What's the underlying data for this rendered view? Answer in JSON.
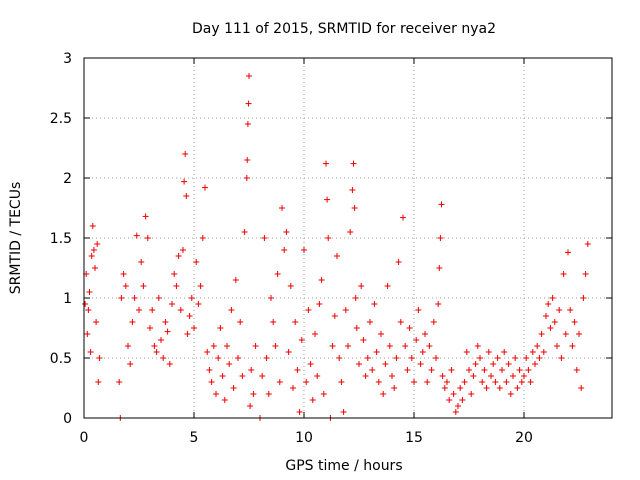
{
  "chart_data": {
    "type": "scatter",
    "title": "Day 111 of 2015, SRMTID for receiver nya2",
    "xlabel": "GPS time / hours",
    "ylabel": "SRMTID / TECUs",
    "xlim": [
      0,
      24
    ],
    "ylim": [
      0,
      3
    ],
    "xticks": [
      0,
      5,
      10,
      15,
      20
    ],
    "yticks": [
      0,
      0.5,
      1,
      1.5,
      2,
      2.5,
      3
    ],
    "xtick_labels": [
      "0",
      "5",
      "10",
      "15",
      "20"
    ],
    "ytick_labels": [
      "0",
      "0.5",
      "1",
      "1.5",
      "2",
      "2.5",
      "3"
    ],
    "grid": true,
    "marker": "plus",
    "color": "#ee0000",
    "series": [
      {
        "name": "SRMTID",
        "points": [
          [
            0.05,
            0.95
          ],
          [
            0.1,
            1.2
          ],
          [
            0.15,
            0.7
          ],
          [
            0.2,
            0.9
          ],
          [
            0.25,
            1.05
          ],
          [
            0.3,
            0.55
          ],
          [
            0.35,
            1.35
          ],
          [
            0.4,
            1.6
          ],
          [
            0.45,
            1.4
          ],
          [
            0.5,
            1.25
          ],
          [
            0.55,
            0.8
          ],
          [
            0.6,
            1.45
          ],
          [
            0.65,
            0.3
          ],
          [
            0.7,
            0.5
          ],
          [
            1.6,
            0.3
          ],
          [
            1.65,
            0.0
          ],
          [
            1.7,
            1.0
          ],
          [
            1.8,
            1.2
          ],
          [
            1.9,
            1.1
          ],
          [
            2.0,
            0.6
          ],
          [
            2.1,
            0.45
          ],
          [
            2.2,
            0.8
          ],
          [
            2.3,
            1.0
          ],
          [
            2.4,
            1.52
          ],
          [
            2.5,
            0.9
          ],
          [
            2.6,
            1.3
          ],
          [
            2.7,
            1.1
          ],
          [
            2.8,
            1.68
          ],
          [
            2.9,
            1.5
          ],
          [
            3.0,
            0.75
          ],
          [
            3.1,
            0.9
          ],
          [
            3.2,
            0.6
          ],
          [
            3.3,
            0.55
          ],
          [
            3.4,
            1.0
          ],
          [
            3.5,
            0.65
          ],
          [
            3.6,
            0.5
          ],
          [
            3.7,
            0.8
          ],
          [
            3.8,
            0.72
          ],
          [
            3.9,
            0.45
          ],
          [
            4.0,
            0.95
          ],
          [
            4.1,
            1.2
          ],
          [
            4.2,
            1.1
          ],
          [
            4.3,
            1.35
          ],
          [
            4.4,
            0.9
          ],
          [
            4.5,
            1.4
          ],
          [
            4.55,
            1.97
          ],
          [
            4.6,
            2.2
          ],
          [
            4.65,
            1.85
          ],
          [
            4.7,
            0.7
          ],
          [
            4.8,
            0.85
          ],
          [
            4.9,
            1.0
          ],
          [
            5.0,
            0.75
          ],
          [
            5.1,
            1.3
          ],
          [
            5.2,
            0.95
          ],
          [
            5.3,
            1.1
          ],
          [
            5.4,
            1.5
          ],
          [
            5.5,
            1.92
          ],
          [
            5.6,
            0.55
          ],
          [
            5.7,
            0.4
          ],
          [
            5.8,
            0.3
          ],
          [
            5.9,
            0.6
          ],
          [
            6.0,
            0.2
          ],
          [
            6.1,
            0.5
          ],
          [
            6.2,
            0.75
          ],
          [
            6.3,
            0.35
          ],
          [
            6.4,
            0.15
          ],
          [
            6.5,
            0.6
          ],
          [
            6.6,
            0.45
          ],
          [
            6.7,
            0.9
          ],
          [
            6.8,
            0.25
          ],
          [
            6.9,
            1.15
          ],
          [
            7.0,
            0.5
          ],
          [
            7.1,
            0.8
          ],
          [
            7.2,
            0.35
          ],
          [
            7.3,
            1.55
          ],
          [
            7.4,
            2.0
          ],
          [
            7.42,
            2.15
          ],
          [
            7.45,
            2.45
          ],
          [
            7.48,
            2.62
          ],
          [
            7.5,
            2.85
          ],
          [
            7.55,
            0.1
          ],
          [
            7.6,
            0.4
          ],
          [
            7.7,
            0.2
          ],
          [
            7.8,
            0.6
          ],
          [
            8.0,
            0.0
          ],
          [
            8.1,
            0.35
          ],
          [
            8.2,
            1.5
          ],
          [
            8.3,
            0.5
          ],
          [
            8.4,
            0.2
          ],
          [
            8.5,
            1.0
          ],
          [
            8.6,
            0.8
          ],
          [
            8.7,
            0.6
          ],
          [
            8.8,
            1.2
          ],
          [
            8.9,
            0.3
          ],
          [
            9.0,
            1.75
          ],
          [
            9.1,
            1.4
          ],
          [
            9.2,
            1.55
          ],
          [
            9.3,
            0.55
          ],
          [
            9.4,
            1.1
          ],
          [
            9.5,
            0.25
          ],
          [
            9.6,
            0.8
          ],
          [
            9.7,
            0.4
          ],
          [
            9.8,
            0.05
          ],
          [
            9.9,
            0.65
          ],
          [
            10.0,
            1.4
          ],
          [
            10.1,
            0.3
          ],
          [
            10.2,
            0.9
          ],
          [
            10.3,
            0.45
          ],
          [
            10.4,
            0.15
          ],
          [
            10.5,
            0.7
          ],
          [
            10.6,
            0.35
          ],
          [
            10.7,
            0.95
          ],
          [
            10.8,
            1.15
          ],
          [
            10.9,
            0.2
          ],
          [
            11.0,
            2.12
          ],
          [
            11.05,
            1.82
          ],
          [
            11.1,
            1.5
          ],
          [
            11.2,
            0.0
          ],
          [
            11.3,
            0.6
          ],
          [
            11.4,
            0.85
          ],
          [
            11.5,
            1.35
          ],
          [
            11.6,
            0.5
          ],
          [
            11.7,
            0.3
          ],
          [
            11.8,
            0.05
          ],
          [
            11.9,
            0.9
          ],
          [
            12.0,
            0.6
          ],
          [
            12.1,
            1.55
          ],
          [
            12.2,
            1.9
          ],
          [
            12.25,
            2.12
          ],
          [
            12.3,
            1.75
          ],
          [
            12.35,
            1.0
          ],
          [
            12.4,
            0.75
          ],
          [
            12.5,
            0.45
          ],
          [
            12.6,
            1.1
          ],
          [
            12.7,
            0.65
          ],
          [
            12.8,
            0.35
          ],
          [
            12.9,
            0.5
          ],
          [
            13.0,
            0.8
          ],
          [
            13.1,
            0.4
          ],
          [
            13.2,
            0.95
          ],
          [
            13.3,
            0.55
          ],
          [
            13.4,
            0.3
          ],
          [
            13.5,
            0.7
          ],
          [
            13.6,
            0.2
          ],
          [
            13.7,
            0.45
          ],
          [
            13.8,
            1.1
          ],
          [
            13.9,
            0.6
          ],
          [
            14.0,
            0.35
          ],
          [
            14.1,
            0.25
          ],
          [
            14.2,
            0.5
          ],
          [
            14.3,
            1.3
          ],
          [
            14.4,
            0.8
          ],
          [
            14.5,
            1.67
          ],
          [
            14.6,
            0.6
          ],
          [
            14.7,
            0.4
          ],
          [
            14.8,
            0.75
          ],
          [
            14.9,
            0.5
          ],
          [
            15.0,
            0.3
          ],
          [
            15.1,
            0.65
          ],
          [
            15.2,
            0.9
          ],
          [
            15.3,
            0.45
          ],
          [
            15.4,
            0.55
          ],
          [
            15.5,
            0.7
          ],
          [
            15.6,
            0.3
          ],
          [
            15.7,
            0.6
          ],
          [
            15.8,
            0.4
          ],
          [
            15.9,
            0.8
          ],
          [
            16.0,
            0.5
          ],
          [
            16.1,
            0.95
          ],
          [
            16.15,
            1.25
          ],
          [
            16.2,
            1.5
          ],
          [
            16.25,
            1.78
          ],
          [
            16.3,
            0.35
          ],
          [
            16.4,
            0.25
          ],
          [
            16.5,
            0.3
          ],
          [
            16.6,
            0.15
          ],
          [
            16.7,
            0.4
          ],
          [
            16.8,
            0.2
          ],
          [
            16.9,
            0.05
          ],
          [
            17.0,
            0.1
          ],
          [
            17.1,
            0.25
          ],
          [
            17.2,
            0.15
          ],
          [
            17.3,
            0.3
          ],
          [
            17.4,
            0.55
          ],
          [
            17.5,
            0.4
          ],
          [
            17.6,
            0.2
          ],
          [
            17.7,
            0.35
          ],
          [
            17.8,
            0.45
          ],
          [
            17.9,
            0.6
          ],
          [
            18.0,
            0.5
          ],
          [
            18.1,
            0.3
          ],
          [
            18.2,
            0.4
          ],
          [
            18.3,
            0.25
          ],
          [
            18.4,
            0.55
          ],
          [
            18.5,
            0.35
          ],
          [
            18.6,
            0.45
          ],
          [
            18.7,
            0.3
          ],
          [
            18.8,
            0.5
          ],
          [
            18.9,
            0.25
          ],
          [
            19.0,
            0.4
          ],
          [
            19.1,
            0.55
          ],
          [
            19.2,
            0.3
          ],
          [
            19.3,
            0.45
          ],
          [
            19.4,
            0.2
          ],
          [
            19.5,
            0.35
          ],
          [
            19.6,
            0.5
          ],
          [
            19.7,
            0.25
          ],
          [
            19.8,
            0.4
          ],
          [
            19.9,
            0.3
          ],
          [
            20.0,
            0.35
          ],
          [
            20.1,
            0.5
          ],
          [
            20.2,
            0.4
          ],
          [
            20.3,
            0.3
          ],
          [
            20.4,
            0.55
          ],
          [
            20.5,
            0.45
          ],
          [
            20.6,
            0.6
          ],
          [
            20.7,
            0.5
          ],
          [
            20.8,
            0.7
          ],
          [
            20.9,
            0.55
          ],
          [
            21.0,
            0.85
          ],
          [
            21.1,
            0.95
          ],
          [
            21.2,
            0.75
          ],
          [
            21.3,
            1.0
          ],
          [
            21.4,
            0.8
          ],
          [
            21.5,
            0.6
          ],
          [
            21.6,
            0.9
          ],
          [
            21.7,
            0.5
          ],
          [
            21.8,
            1.2
          ],
          [
            21.9,
            0.7
          ],
          [
            22.0,
            1.38
          ],
          [
            22.1,
            0.9
          ],
          [
            22.2,
            0.6
          ],
          [
            22.3,
            0.8
          ],
          [
            22.4,
            0.4
          ],
          [
            22.5,
            0.7
          ],
          [
            22.6,
            0.25
          ],
          [
            22.7,
            1.0
          ],
          [
            22.8,
            1.2
          ],
          [
            22.9,
            1.45
          ]
        ]
      }
    ]
  }
}
